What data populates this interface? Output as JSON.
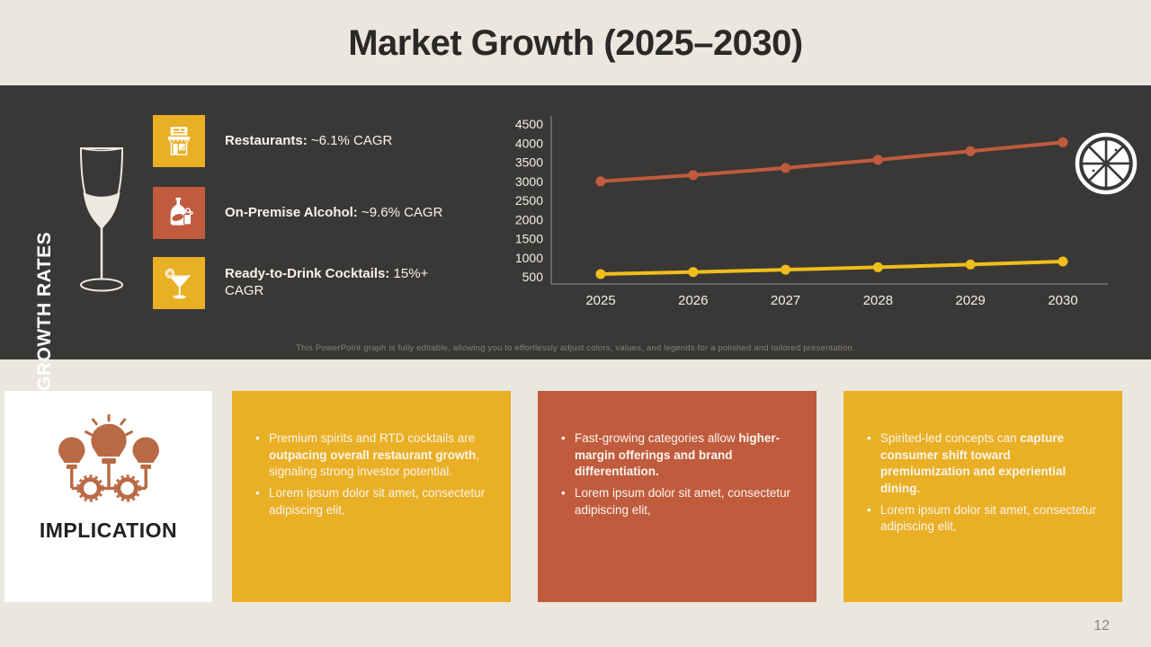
{
  "slide": {
    "title": "Market Growth (2025–2030)",
    "page_number": "12"
  },
  "growth_panel": {
    "side_label": "GROWTH RATES",
    "items": [
      {
        "icon": "restaurant-icon",
        "tile_color": "#E9AF25",
        "label_bold": "Restaurants:",
        "label_rest": " ~6.1% CAGR"
      },
      {
        "icon": "alcohol-bottle-icon",
        "tile_color": "#C05B3E",
        "label_bold": "On-Premise Alcohol:",
        "label_rest": " ~9.6% CAGR"
      },
      {
        "icon": "cocktail-icon",
        "tile_color": "#E9AF25",
        "label_bold": "Ready-to-Drink Cocktails:",
        "label_rest": " 15%+ CAGR"
      }
    ],
    "footnote": "This PowerPoint graph is fully editable, allowing you to effortlessly adjust colors, values, and legends for a polished and tailored presentation."
  },
  "chart_data": {
    "type": "line",
    "title": "",
    "xlabel": "",
    "ylabel": "",
    "x": [
      "2025",
      "2026",
      "2027",
      "2028",
      "2029",
      "2030"
    ],
    "series": [
      {
        "name": "series-red",
        "color": "#C05B3E",
        "values": [
          3000,
          3160,
          3350,
          3560,
          3790,
          4020
        ]
      },
      {
        "name": "series-yellow",
        "color": "#EFBE1B",
        "values": [
          570,
          625,
          685,
          750,
          820,
          900
        ]
      }
    ],
    "ylim": [
      500,
      4500
    ],
    "ytick_step": 500,
    "grid": false,
    "legend": "none"
  },
  "implication": {
    "label": "IMPLICATION",
    "boxes": [
      {
        "color": "#E9AF25",
        "bullets": [
          [
            {
              "t": "Premium spirits and RTD cocktails are ",
              "b": false
            },
            {
              "t": "outpacing overall restaurant growth",
              "b": true
            },
            {
              "t": ", signaling strong investor potential.",
              "b": false
            }
          ],
          [
            {
              "t": "Lorem ipsum dolor sit amet, consectetur adipiscing elit,",
              "b": false
            }
          ]
        ]
      },
      {
        "color": "#C05B3E",
        "bullets": [
          [
            {
              "t": "Fast-growing categories allow ",
              "b": false
            },
            {
              "t": "higher-margin offerings and brand differentiation.",
              "b": true
            }
          ],
          [
            {
              "t": "Lorem ipsum dolor sit amet, consectetur adipiscing elit,",
              "b": false
            }
          ]
        ]
      },
      {
        "color": "#E9AF25",
        "bullets": [
          [
            {
              "t": "Spirited-led concepts can ",
              "b": false
            },
            {
              "t": "capture consumer shift toward premiumization and experiential dining.",
              "b": true
            }
          ],
          [
            {
              "t": "Lorem ipsum dolor sit amet, consectetur adipiscing elit,",
              "b": false
            }
          ]
        ]
      }
    ]
  }
}
